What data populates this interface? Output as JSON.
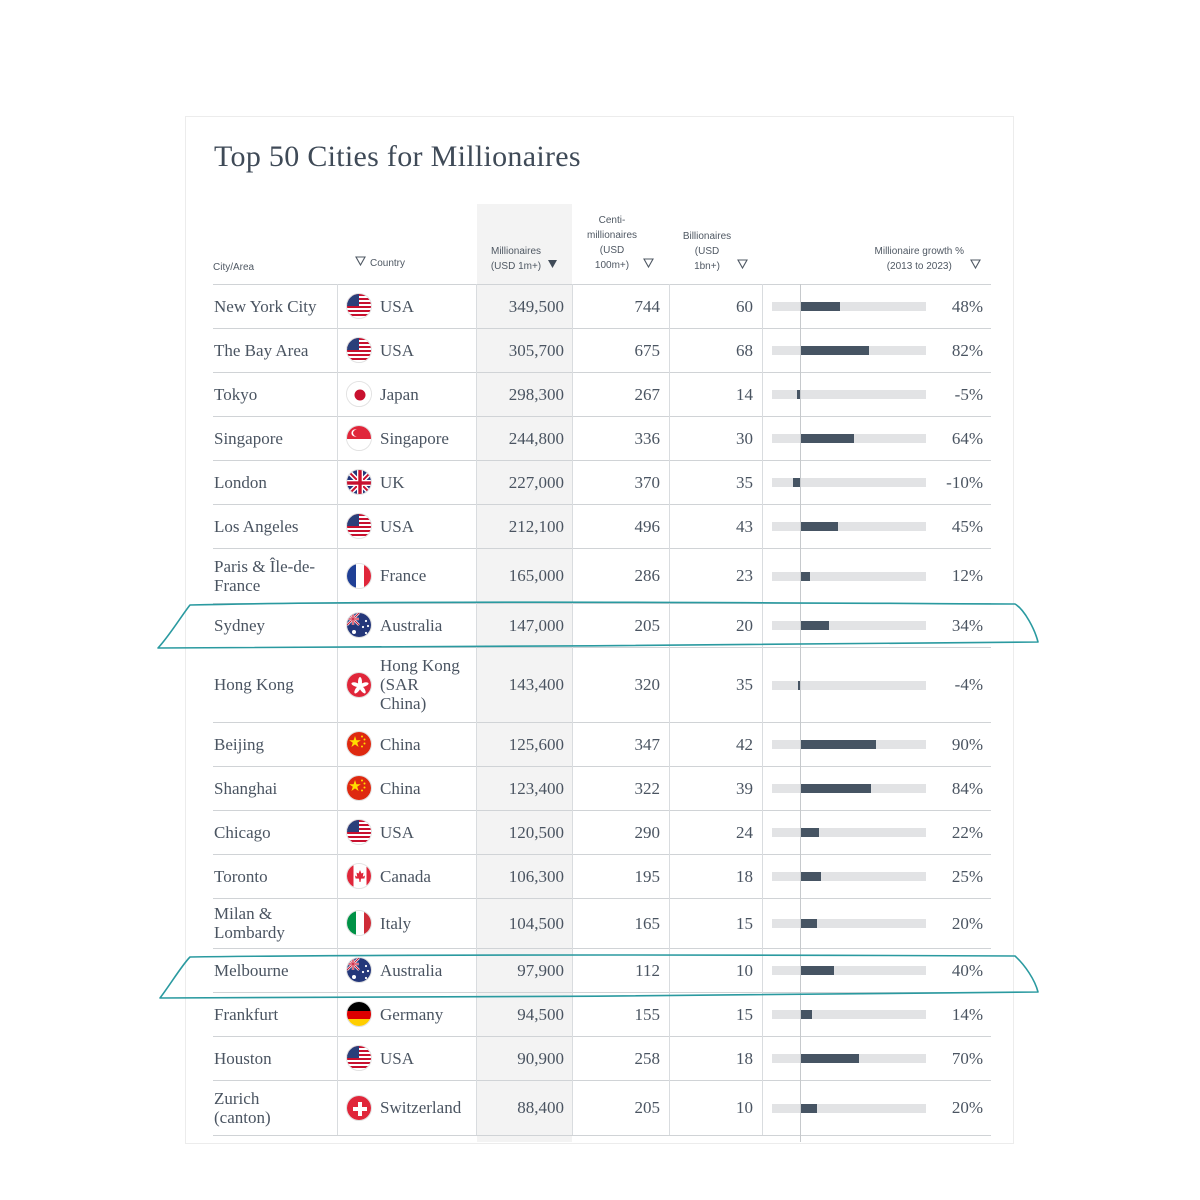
{
  "title": "Top 50 Cities for Millionaires",
  "headers": {
    "city": [
      "City/Area"
    ],
    "country": [
      "Country"
    ],
    "millionaires": [
      "Millionaires",
      "(USD 1m+)"
    ],
    "centi": [
      "Centi-",
      "millionaires",
      "(USD",
      "100m+)"
    ],
    "billionaires": [
      "Billionaires",
      "(USD",
      "1bn+)"
    ],
    "growth": [
      "Millionaire growth %",
      "(2013 to 2023)"
    ]
  },
  "rows": [
    {
      "city": [
        "New York City"
      ],
      "country": [
        "USA"
      ],
      "flag": "usa-flag-icon",
      "millionaires": "349,500",
      "centi": "744",
      "billionaires": "60",
      "growth": 48,
      "growth_label": "48%"
    },
    {
      "city": [
        "The Bay Area"
      ],
      "country": [
        "USA"
      ],
      "flag": "usa-flag-icon",
      "millionaires": "305,700",
      "centi": "675",
      "billionaires": "68",
      "growth": 82,
      "growth_label": "82%"
    },
    {
      "city": [
        "Tokyo"
      ],
      "country": [
        "Japan"
      ],
      "flag": "japan-flag-icon",
      "millionaires": "298,300",
      "centi": "267",
      "billionaires": "14",
      "growth": -5,
      "growth_label": "-5%"
    },
    {
      "city": [
        "Singapore"
      ],
      "country": [
        "Singapore"
      ],
      "flag": "singapore-flag-icon",
      "millionaires": "244,800",
      "centi": "336",
      "billionaires": "30",
      "growth": 64,
      "growth_label": "64%"
    },
    {
      "city": [
        "London"
      ],
      "country": [
        "UK"
      ],
      "flag": "uk-flag-icon",
      "millionaires": "227,000",
      "centi": "370",
      "billionaires": "35",
      "growth": -10,
      "growth_label": "-10%"
    },
    {
      "city": [
        "Los Angeles"
      ],
      "country": [
        "USA"
      ],
      "flag": "usa-flag-icon",
      "millionaires": "212,100",
      "centi": "496",
      "billionaires": "43",
      "growth": 45,
      "growth_label": "45%"
    },
    {
      "city": [
        "Paris & Île-de-",
        "France"
      ],
      "country": [
        "France"
      ],
      "flag": "france-flag-icon",
      "millionaires": "165,000",
      "centi": "286",
      "billionaires": "23",
      "growth": 12,
      "growth_label": "12%"
    },
    {
      "city": [
        "Sydney"
      ],
      "country": [
        "Australia"
      ],
      "flag": "australia-flag-icon",
      "millionaires": "147,000",
      "centi": "205",
      "billionaires": "20",
      "growth": 34,
      "growth_label": "34%",
      "highlighted": true
    },
    {
      "city": [
        "Hong Kong"
      ],
      "country": [
        "Hong Kong",
        "(SAR",
        "China)"
      ],
      "flag": "hong-kong-flag-icon",
      "millionaires": "143,400",
      "centi": "320",
      "billionaires": "35",
      "growth": -4,
      "growth_label": "-4%"
    },
    {
      "city": [
        "Beijing"
      ],
      "country": [
        "China"
      ],
      "flag": "china-flag-icon",
      "millionaires": "125,600",
      "centi": "347",
      "billionaires": "42",
      "growth": 90,
      "growth_label": "90%"
    },
    {
      "city": [
        "Shanghai"
      ],
      "country": [
        "China"
      ],
      "flag": "china-flag-icon",
      "millionaires": "123,400",
      "centi": "322",
      "billionaires": "39",
      "growth": 84,
      "growth_label": "84%"
    },
    {
      "city": [
        "Chicago"
      ],
      "country": [
        "USA"
      ],
      "flag": "usa-flag-icon",
      "millionaires": "120,500",
      "centi": "290",
      "billionaires": "24",
      "growth": 22,
      "growth_label": "22%"
    },
    {
      "city": [
        "Toronto"
      ],
      "country": [
        "Canada"
      ],
      "flag": "canada-flag-icon",
      "millionaires": "106,300",
      "centi": "195",
      "billionaires": "18",
      "growth": 25,
      "growth_label": "25%"
    },
    {
      "city": [
        "Milan &",
        "Lombardy"
      ],
      "country": [
        "Italy"
      ],
      "flag": "italy-flag-icon",
      "millionaires": "104,500",
      "centi": "165",
      "billionaires": "15",
      "growth": 20,
      "growth_label": "20%"
    },
    {
      "city": [
        "Melbourne"
      ],
      "country": [
        "Australia"
      ],
      "flag": "australia-flag-icon",
      "millionaires": "97,900",
      "centi": "112",
      "billionaires": "10",
      "growth": 40,
      "growth_label": "40%",
      "highlighted": true
    },
    {
      "city": [
        "Frankfurt"
      ],
      "country": [
        "Germany"
      ],
      "flag": "germany-flag-icon",
      "millionaires": "94,500",
      "centi": "155",
      "billionaires": "15",
      "growth": 14,
      "growth_label": "14%"
    },
    {
      "city": [
        "Houston"
      ],
      "country": [
        "USA"
      ],
      "flag": "usa-flag-icon",
      "millionaires": "90,900",
      "centi": "258",
      "billionaires": "18",
      "growth": 70,
      "growth_label": "70%"
    },
    {
      "city": [
        "Zurich",
        "(canton)"
      ],
      "country": [
        "Switzerland"
      ],
      "flag": "switzerland-flag-icon",
      "millionaires": "88,400",
      "centi": "205",
      "billionaires": "10",
      "growth": 20,
      "growth_label": "20%"
    }
  ],
  "colors": {
    "bar": "#465463",
    "track": "#e2e3e5",
    "highlight_stroke": "#2a9aa0",
    "sorted_column_bg": "#f3f3f3"
  }
}
